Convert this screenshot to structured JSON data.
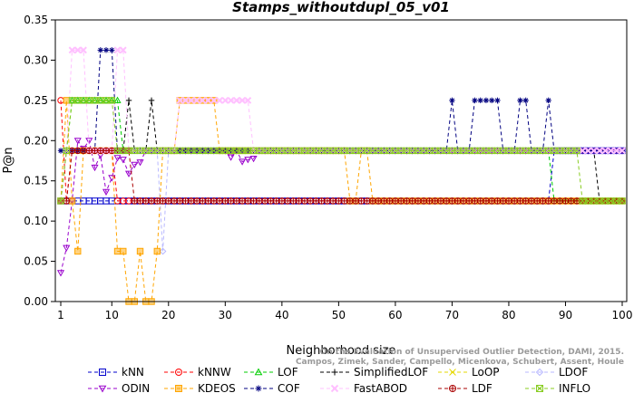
{
  "chart_data": {
    "type": "line",
    "title": "Stamps_withoutdupl_05_v01",
    "xlabel": "Neighborhood size",
    "ylabel": "P@n",
    "xlim": [
      1,
      100
    ],
    "ylim": [
      0,
      0.35
    ],
    "x_ticks": [
      1,
      10,
      20,
      30,
      40,
      50,
      60,
      70,
      80,
      90,
      100
    ],
    "y_ticks": [
      "0.00",
      "0.05",
      "0.10",
      "0.15",
      "0.20",
      "0.25",
      "0.30",
      "0.35"
    ],
    "caption": [
      "Campos, Zimek, Sander, Campello, Micenkova, Schubert, Assent, Houle",
      "On the Evaluation of Unsupervised Outlier Detection, DAMI, 2015."
    ],
    "series": [
      {
        "name": "kNN",
        "color": "#0000cc",
        "marker": "square",
        "segments": [
          [
            1,
            0.125
          ],
          [
            2,
            0.125
          ],
          [
            3,
            0.125
          ],
          [
            87,
            0.125
          ],
          [
            88,
            0.1875
          ],
          [
            100,
            0.1875
          ]
        ]
      },
      {
        "name": "kNNW",
        "color": "#ff0000",
        "marker": "circle",
        "segments": [
          [
            1,
            0.25
          ],
          [
            2,
            0.125
          ],
          [
            3,
            0.1875
          ],
          [
            10,
            0.1875
          ],
          [
            11,
            0.125
          ],
          [
            100,
            0.125
          ]
        ]
      },
      {
        "name": "LOF",
        "color": "#00cc00",
        "marker": "triangle",
        "segments": [
          [
            1,
            0.125
          ],
          [
            2,
            0.1875
          ],
          [
            3,
            0.25
          ],
          [
            11,
            0.25
          ],
          [
            12,
            0.1875
          ],
          [
            87,
            0.1875
          ],
          [
            88,
            0.125
          ],
          [
            100,
            0.125
          ]
        ]
      },
      {
        "name": "SimplifiedLOF",
        "color": "#000000",
        "marker": "plus",
        "segments": [
          [
            1,
            0.125
          ],
          [
            2,
            0.1875
          ],
          [
            12,
            0.1875
          ],
          [
            13,
            0.25
          ],
          [
            14,
            0.1875
          ],
          [
            16,
            0.1875
          ],
          [
            17,
            0.25
          ],
          [
            18,
            0.1875
          ],
          [
            95,
            0.1875
          ],
          [
            96,
            0.125
          ],
          [
            100,
            0.125
          ]
        ]
      },
      {
        "name": "LoOP",
        "color": "#e6d800",
        "marker": "x",
        "segments": [
          [
            1,
            0.125
          ],
          [
            2,
            0.1875
          ],
          [
            100,
            0.1875
          ]
        ]
      },
      {
        "name": "LDOF",
        "color": "#b8b8ff",
        "marker": "diamond",
        "segments": [
          [
            1,
            0.125
          ],
          [
            2,
            0.1875
          ],
          [
            18,
            0.1875
          ],
          [
            19,
            0.0625
          ],
          [
            20,
            0.1875
          ],
          [
            100,
            0.1875
          ]
        ]
      },
      {
        "name": "ODIN",
        "color": "#9900cc",
        "marker": "invtriangle",
        "segments": [
          [
            1,
            0.0357
          ],
          [
            2,
            0.0667
          ],
          [
            3,
            0.125
          ],
          [
            4,
            0.2
          ],
          [
            5,
            0.19
          ],
          [
            6,
            0.2
          ],
          [
            7,
            0.1667
          ],
          [
            8,
            0.1818
          ],
          [
            9,
            0.1364
          ],
          [
            10,
            0.1538
          ],
          [
            11,
            0.1786
          ],
          [
            12,
            0.1765
          ],
          [
            13,
            0.1591
          ],
          [
            14,
            0.1702
          ],
          [
            15,
            0.1731
          ],
          [
            16,
            0.1875
          ],
          [
            30,
            0.1875
          ],
          [
            31,
            0.1795
          ],
          [
            32,
            0.1875
          ],
          [
            33,
            0.1739
          ],
          [
            34,
            0.1765
          ],
          [
            35,
            0.1778
          ],
          [
            36,
            0.1875
          ],
          [
            100,
            0.1875
          ]
        ]
      },
      {
        "name": "KDEOS",
        "color": "#ffa500",
        "marker": "boxsquare",
        "segments": [
          [
            1,
            0.125
          ],
          [
            2,
            0.25
          ],
          [
            3,
            0.125
          ],
          [
            4,
            0.0625
          ],
          [
            5,
            0.1875
          ],
          [
            10,
            0.1875
          ],
          [
            11,
            0.0625
          ],
          [
            12,
            0.0625
          ],
          [
            13,
            0.0
          ],
          [
            14,
            0.0
          ],
          [
            15,
            0.0625
          ],
          [
            16,
            0.0
          ],
          [
            17,
            0.0
          ],
          [
            18,
            0.0625
          ],
          [
            19,
            0.1875
          ],
          [
            21,
            0.1875
          ],
          [
            22,
            0.25
          ],
          [
            28,
            0.25
          ],
          [
            29,
            0.1875
          ],
          [
            51,
            0.1875
          ],
          [
            52,
            0.125
          ],
          [
            53,
            0.125
          ],
          [
            54,
            0.1875
          ],
          [
            55,
            0.1875
          ],
          [
            56,
            0.125
          ],
          [
            100,
            0.125
          ]
        ]
      },
      {
        "name": "COF",
        "color": "#000080",
        "marker": "asterisk",
        "segments": [
          [
            1,
            0.1875
          ],
          [
            7,
            0.1875
          ],
          [
            8,
            0.3125
          ],
          [
            10,
            0.3125
          ],
          [
            11,
            0.1875
          ],
          [
            69,
            0.1875
          ],
          [
            70,
            0.25
          ],
          [
            71,
            0.1875
          ],
          [
            73,
            0.1875
          ],
          [
            74,
            0.25
          ],
          [
            78,
            0.25
          ],
          [
            79,
            0.1875
          ],
          [
            81,
            0.1875
          ],
          [
            82,
            0.25
          ],
          [
            83,
            0.25
          ],
          [
            84,
            0.1875
          ],
          [
            86,
            0.1875
          ],
          [
            87,
            0.25
          ],
          [
            88,
            0.1875
          ],
          [
            100,
            0.1875
          ]
        ]
      },
      {
        "name": "FastABOD",
        "color": "#ffc0ff",
        "marker": "ex",
        "segments": [
          [
            1,
            0.125
          ],
          [
            2,
            0.1875
          ],
          [
            3,
            0.3125
          ],
          [
            5,
            0.3125
          ],
          [
            6,
            0.1875
          ],
          [
            10,
            0.1875
          ],
          [
            11,
            0.3125
          ],
          [
            12,
            0.3125
          ],
          [
            13,
            0.1875
          ],
          [
            21,
            0.1875
          ],
          [
            22,
            0.25
          ],
          [
            34,
            0.25
          ],
          [
            35,
            0.1875
          ],
          [
            100,
            0.1875
          ]
        ]
      },
      {
        "name": "LDF",
        "color": "#aa0000",
        "marker": "circleplus",
        "segments": [
          [
            1,
            0.125
          ],
          [
            2,
            0.125
          ],
          [
            3,
            0.1875
          ],
          [
            13,
            0.1875
          ],
          [
            14,
            0.125
          ],
          [
            100,
            0.125
          ]
        ]
      },
      {
        "name": "INFLO",
        "color": "#88cc22",
        "marker": "boxx",
        "segments": [
          [
            1,
            0.125
          ],
          [
            2,
            0.1875
          ],
          [
            3,
            0.25
          ],
          [
            10,
            0.25
          ],
          [
            11,
            0.1875
          ],
          [
            92,
            0.1875
          ],
          [
            93,
            0.125
          ],
          [
            100,
            0.125
          ]
        ]
      }
    ],
    "legend_order": [
      "kNN",
      "kNNW",
      "LOF",
      "SimplifiedLOF",
      "LoOP",
      "LDOF",
      "ODIN",
      "KDEOS",
      "COF",
      "FastABOD",
      "LDF",
      "INFLO"
    ],
    "legend_position": "bottom"
  }
}
